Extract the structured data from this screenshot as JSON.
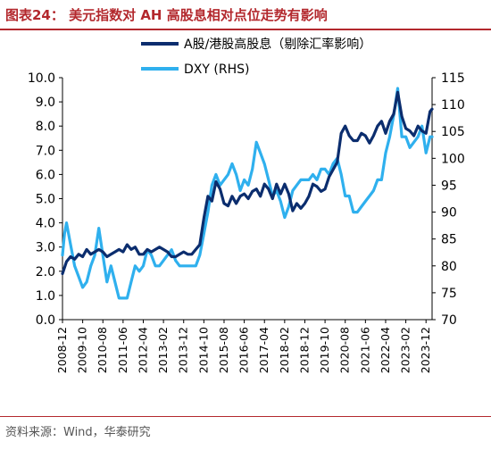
{
  "header": {
    "title": "图表24： 美元指数对 AH 高股息相对点位走势有影响"
  },
  "footer": {
    "source": "资料来源：Wind，华泰研究"
  },
  "colors": {
    "accent": "#b3282d",
    "series_a": "#0b2d6e",
    "series_dxy": "#2fb0ee"
  },
  "chart_data": {
    "type": "line",
    "y_left": {
      "ylim": [
        0,
        10
      ],
      "ticks": [
        "0.0",
        "1.0",
        "2.0",
        "3.0",
        "4.0",
        "5.0",
        "6.0",
        "7.0",
        "8.0",
        "9.0",
        "10.0"
      ]
    },
    "y_right": {
      "ylim": [
        70,
        115
      ],
      "ticks": [
        "70",
        "75",
        "80",
        "85",
        "90",
        "95",
        "100",
        "105",
        "110",
        "115"
      ]
    },
    "x_range": [
      "2008-12",
      "2024-03"
    ],
    "x_ticks": [
      "2008-12",
      "2009-10",
      "2010-08",
      "2011-06",
      "2012-04",
      "2013-02",
      "2013-12",
      "2014-10",
      "2015-08",
      "2016-06",
      "2017-04",
      "2018-02",
      "2018-12",
      "2019-10",
      "2020-08",
      "2021-06",
      "2022-04",
      "2023-02",
      "2023-12"
    ],
    "legend": [
      "A股/港股高股息（剔除汇率影响）",
      "DXY (RHS)"
    ],
    "legend_placement": "top-right",
    "series": [
      {
        "name": "A股/港股高股息（剔除汇率影响）",
        "axis": "left",
        "color": "#0b2d6e",
        "points": [
          [
            "2008-12",
            1.9
          ],
          [
            "2009-02",
            2.4
          ],
          [
            "2009-04",
            2.6
          ],
          [
            "2009-06",
            2.5
          ],
          [
            "2009-08",
            2.7
          ],
          [
            "2009-10",
            2.6
          ],
          [
            "2009-12",
            2.9
          ],
          [
            "2010-02",
            2.7
          ],
          [
            "2010-04",
            2.8
          ],
          [
            "2010-06",
            2.9
          ],
          [
            "2010-08",
            2.8
          ],
          [
            "2010-10",
            2.6
          ],
          [
            "2010-12",
            2.7
          ],
          [
            "2011-02",
            2.8
          ],
          [
            "2011-04",
            2.9
          ],
          [
            "2011-06",
            2.8
          ],
          [
            "2011-08",
            3.1
          ],
          [
            "2011-10",
            2.9
          ],
          [
            "2011-12",
            3.0
          ],
          [
            "2012-02",
            2.7
          ],
          [
            "2012-04",
            2.7
          ],
          [
            "2012-06",
            2.9
          ],
          [
            "2012-08",
            2.8
          ],
          [
            "2012-10",
            2.9
          ],
          [
            "2012-12",
            3.0
          ],
          [
            "2013-02",
            2.9
          ],
          [
            "2013-04",
            2.8
          ],
          [
            "2013-06",
            2.6
          ],
          [
            "2013-08",
            2.6
          ],
          [
            "2013-10",
            2.7
          ],
          [
            "2013-12",
            2.8
          ],
          [
            "2014-02",
            2.7
          ],
          [
            "2014-04",
            2.7
          ],
          [
            "2014-06",
            2.9
          ],
          [
            "2014-08",
            3.1
          ],
          [
            "2014-10",
            4.2
          ],
          [
            "2014-12",
            5.1
          ],
          [
            "2015-02",
            4.9
          ],
          [
            "2015-04",
            5.7
          ],
          [
            "2015-06",
            5.4
          ],
          [
            "2015-08",
            4.8
          ],
          [
            "2015-10",
            4.7
          ],
          [
            "2015-12",
            5.1
          ],
          [
            "2016-02",
            4.8
          ],
          [
            "2016-04",
            5.1
          ],
          [
            "2016-06",
            5.2
          ],
          [
            "2016-08",
            5.0
          ],
          [
            "2016-10",
            5.3
          ],
          [
            "2016-12",
            5.4
          ],
          [
            "2017-02",
            5.1
          ],
          [
            "2017-04",
            5.6
          ],
          [
            "2017-06",
            5.4
          ],
          [
            "2017-08",
            5.0
          ],
          [
            "2017-10",
            5.6
          ],
          [
            "2017-12",
            5.2
          ],
          [
            "2018-02",
            5.6
          ],
          [
            "2018-04",
            5.2
          ],
          [
            "2018-06",
            4.5
          ],
          [
            "2018-08",
            4.8
          ],
          [
            "2018-10",
            4.6
          ],
          [
            "2018-12",
            4.8
          ],
          [
            "2019-02",
            5.1
          ],
          [
            "2019-04",
            5.6
          ],
          [
            "2019-06",
            5.5
          ],
          [
            "2019-08",
            5.3
          ],
          [
            "2019-10",
            5.4
          ],
          [
            "2019-12",
            5.9
          ],
          [
            "2020-02",
            6.2
          ],
          [
            "2020-04",
            6.5
          ],
          [
            "2020-06",
            7.7
          ],
          [
            "2020-08",
            8.0
          ],
          [
            "2020-10",
            7.6
          ],
          [
            "2020-12",
            7.4
          ],
          [
            "2021-02",
            7.4
          ],
          [
            "2021-04",
            7.7
          ],
          [
            "2021-06",
            7.6
          ],
          [
            "2021-08",
            7.3
          ],
          [
            "2021-10",
            7.6
          ],
          [
            "2021-12",
            8.0
          ],
          [
            "2022-02",
            8.2
          ],
          [
            "2022-04",
            7.7
          ],
          [
            "2022-06",
            8.2
          ],
          [
            "2022-08",
            8.5
          ],
          [
            "2022-10",
            9.4
          ],
          [
            "2022-12",
            8.4
          ],
          [
            "2023-02",
            7.9
          ],
          [
            "2023-04",
            7.8
          ],
          [
            "2023-06",
            7.6
          ],
          [
            "2023-08",
            8.0
          ],
          [
            "2023-10",
            7.8
          ],
          [
            "2023-12",
            7.7
          ],
          [
            "2024-02",
            8.6
          ],
          [
            "2024-03",
            8.7
          ]
        ]
      },
      {
        "name": "DXY (RHS)",
        "axis": "right",
        "color": "#2fb0ee",
        "points": [
          [
            "2008-12",
            82
          ],
          [
            "2009-01",
            86
          ],
          [
            "2009-02",
            88
          ],
          [
            "2009-04",
            84
          ],
          [
            "2009-06",
            80
          ],
          [
            "2009-08",
            78
          ],
          [
            "2009-10",
            76
          ],
          [
            "2009-12",
            77
          ],
          [
            "2010-02",
            80
          ],
          [
            "2010-04",
            82
          ],
          [
            "2010-06",
            87
          ],
          [
            "2010-08",
            82
          ],
          [
            "2010-10",
            77
          ],
          [
            "2010-12",
            80
          ],
          [
            "2011-02",
            77
          ],
          [
            "2011-04",
            74
          ],
          [
            "2011-06",
            74
          ],
          [
            "2011-08",
            74
          ],
          [
            "2011-10",
            77
          ],
          [
            "2011-12",
            80
          ],
          [
            "2012-02",
            79
          ],
          [
            "2012-04",
            80
          ],
          [
            "2012-06",
            83
          ],
          [
            "2012-08",
            82
          ],
          [
            "2012-10",
            80
          ],
          [
            "2012-12",
            80
          ],
          [
            "2013-02",
            81
          ],
          [
            "2013-04",
            82
          ],
          [
            "2013-06",
            83
          ],
          [
            "2013-08",
            81
          ],
          [
            "2013-10",
            80
          ],
          [
            "2013-12",
            80
          ],
          [
            "2014-02",
            80
          ],
          [
            "2014-04",
            80
          ],
          [
            "2014-06",
            80
          ],
          [
            "2014-08",
            82
          ],
          [
            "2014-10",
            86
          ],
          [
            "2014-12",
            90
          ],
          [
            "2015-02",
            95
          ],
          [
            "2015-04",
            97
          ],
          [
            "2015-06",
            95
          ],
          [
            "2015-08",
            96
          ],
          [
            "2015-10",
            97
          ],
          [
            "2015-12",
            99
          ],
          [
            "2016-02",
            97
          ],
          [
            "2016-04",
            94
          ],
          [
            "2016-06",
            96
          ],
          [
            "2016-08",
            95
          ],
          [
            "2016-10",
            98
          ],
          [
            "2016-12",
            103
          ],
          [
            "2017-02",
            101
          ],
          [
            "2017-04",
            99
          ],
          [
            "2017-06",
            96
          ],
          [
            "2017-08",
            93
          ],
          [
            "2017-10",
            94
          ],
          [
            "2017-12",
            92
          ],
          [
            "2018-02",
            89
          ],
          [
            "2018-04",
            91
          ],
          [
            "2018-06",
            94
          ],
          [
            "2018-08",
            95
          ],
          [
            "2018-10",
            96
          ],
          [
            "2018-12",
            96
          ],
          [
            "2019-02",
            96
          ],
          [
            "2019-04",
            97
          ],
          [
            "2019-06",
            96
          ],
          [
            "2019-08",
            98
          ],
          [
            "2019-10",
            98
          ],
          [
            "2019-12",
            97
          ],
          [
            "2020-02",
            99
          ],
          [
            "2020-04",
            100
          ],
          [
            "2020-06",
            97
          ],
          [
            "2020-08",
            93
          ],
          [
            "2020-10",
            93
          ],
          [
            "2020-12",
            90
          ],
          [
            "2021-02",
            90
          ],
          [
            "2021-04",
            91
          ],
          [
            "2021-06",
            92
          ],
          [
            "2021-08",
            93
          ],
          [
            "2021-10",
            94
          ],
          [
            "2021-12",
            96
          ],
          [
            "2022-02",
            96
          ],
          [
            "2022-04",
            101
          ],
          [
            "2022-06",
            104
          ],
          [
            "2022-08",
            108
          ],
          [
            "2022-10",
            113
          ],
          [
            "2022-12",
            104
          ],
          [
            "2023-02",
            104
          ],
          [
            "2023-04",
            102
          ],
          [
            "2023-06",
            103
          ],
          [
            "2023-08",
            104
          ],
          [
            "2023-10",
            106
          ],
          [
            "2023-12",
            101
          ],
          [
            "2024-02",
            104
          ],
          [
            "2024-03",
            104
          ]
        ]
      }
    ]
  }
}
